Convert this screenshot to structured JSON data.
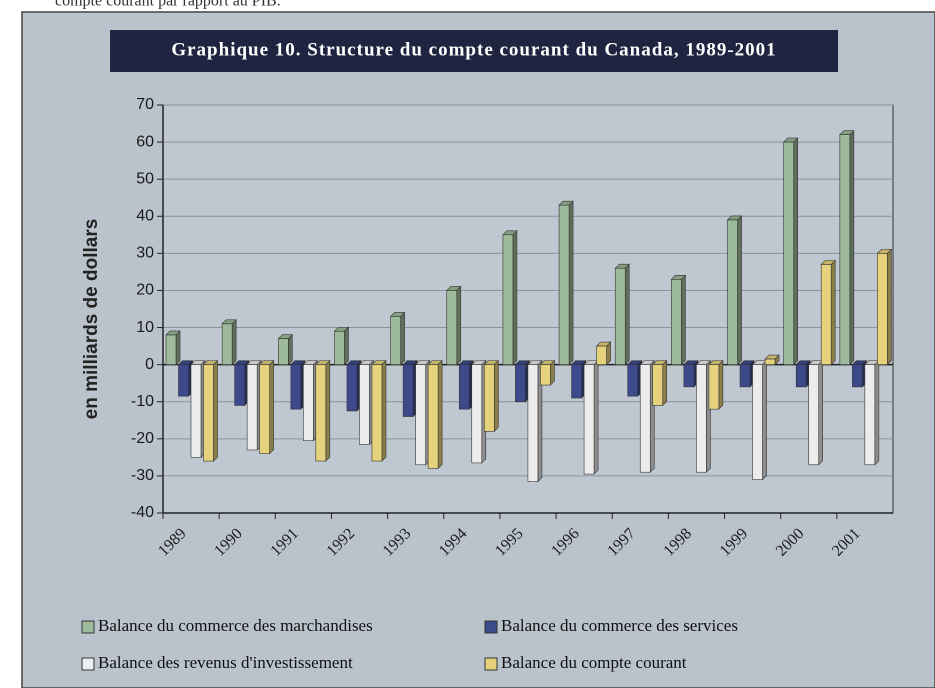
{
  "page_text": "compte courant par rapport au PIB.",
  "chart_data": {
    "type": "bar3d",
    "title": "Graphique 10. Structure du compte courant du Canada, 1989-2001",
    "y_label": "en milliards de dollars",
    "categories": [
      "1989",
      "1990",
      "1991",
      "1992",
      "1993",
      "1994",
      "1995",
      "1996",
      "1997",
      "1998",
      "1999",
      "2000",
      "2001"
    ],
    "series": [
      {
        "name": "Balance du commerce des marchandises",
        "color": "#9dbb9a",
        "values": [
          8,
          11,
          7,
          9,
          13,
          20,
          35,
          43,
          26,
          23,
          39,
          60,
          62
        ]
      },
      {
        "name": "Balance du commerce des services",
        "color": "#3c4a8c",
        "values": [
          -8.5,
          -11,
          -12,
          -12.5,
          -14,
          -12,
          -10,
          -9,
          -8.5,
          -6,
          -6,
          -6,
          -6
        ]
      },
      {
        "name": "Balance des revenus d'investissement",
        "color": "#ececec",
        "values": [
          -25,
          -23,
          -20.5,
          -21.5,
          -27,
          -26.5,
          -31.5,
          -29.5,
          -29,
          -29,
          -31,
          -27,
          -27
        ]
      },
      {
        "name": "Balance du compte courant",
        "color": "#e6d27c",
        "values": [
          -26,
          -24,
          -26,
          -26,
          -28,
          -18,
          -5.5,
          5,
          -11,
          -12,
          1.5,
          27,
          30
        ]
      }
    ],
    "ylim": [
      -40,
      70
    ],
    "yticks": [
      -40,
      -30,
      -20,
      -10,
      0,
      10,
      20,
      30,
      40,
      50,
      60,
      70
    ],
    "grid": true
  }
}
